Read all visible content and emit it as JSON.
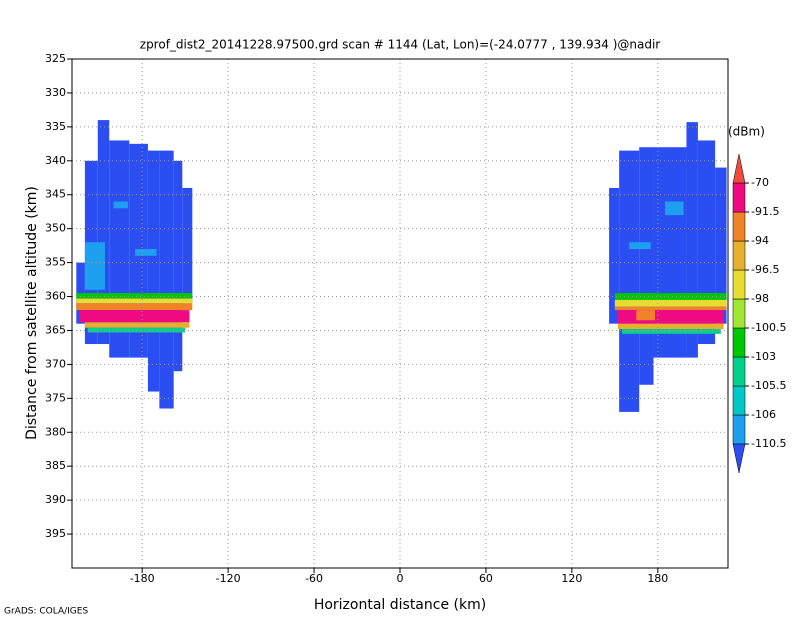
{
  "chart_data": {
    "type": "heatmap",
    "title": "zprof_dist2_20141228.97500.grd  scan # 1144  (Lat, Lon)=(-24.0777 , 139.934 )@nadir",
    "x_label": "Horizontal distance (km)",
    "y_label": "Distance from satellite altitude (km)",
    "colorbar_label": "(dBm)",
    "footer": "GrADS: COLA/IGES",
    "xlim": [
      -229,
      229
    ],
    "ylim": [
      325,
      400
    ],
    "y_inverted": true,
    "grid": true,
    "xticks": [
      -180,
      -120,
      -60,
      0,
      60,
      120,
      180
    ],
    "yticks": [
      325,
      330,
      335,
      340,
      345,
      350,
      355,
      360,
      365,
      370,
      375,
      380,
      385,
      390,
      395
    ],
    "levels": [
      -110.5,
      -106,
      -105.5,
      -103,
      -100.5,
      -98,
      -96.5,
      -94,
      -91.5,
      -70
    ],
    "colors": [
      "#2a4ef2",
      "#1ea0f0",
      "#00c8c8",
      "#00d28c",
      "#00c800",
      "#a0e632",
      "#e6dc32",
      "#e6af2d",
      "#f08228",
      "#f00a82",
      "#f04b3c"
    ],
    "cells": [
      {
        "x": [
          -226,
          -220
        ],
        "y": [
          355,
          364
        ],
        "value": -112
      },
      {
        "x": [
          -220,
          -211
        ],
        "y": [
          340,
          367
        ],
        "value": -112
      },
      {
        "x": [
          -211,
          -203
        ],
        "y": [
          334,
          367
        ],
        "value": -112
      },
      {
        "x": [
          -203,
          -189
        ],
        "y": [
          337,
          369
        ],
        "value": -112
      },
      {
        "x": [
          -189,
          -176
        ],
        "y": [
          337.5,
          369
        ],
        "value": -112
      },
      {
        "x": [
          -176,
          -168
        ],
        "y": [
          338.5,
          374
        ],
        "value": -112
      },
      {
        "x": [
          -168,
          -158
        ],
        "y": [
          338.5,
          376.5
        ],
        "value": -112
      },
      {
        "x": [
          -158,
          -152
        ],
        "y": [
          340,
          371
        ],
        "value": -112
      },
      {
        "x": [
          -152,
          -145
        ],
        "y": [
          344,
          361
        ],
        "value": -112
      },
      {
        "x": [
          -220,
          -206
        ],
        "y": [
          352,
          359
        ],
        "value": -108
      },
      {
        "x": [
          -200,
          -190
        ],
        "y": [
          346,
          347
        ],
        "value": -108
      },
      {
        "x": [
          -185,
          -170
        ],
        "y": [
          353,
          354
        ],
        "value": -108
      },
      {
        "x": [
          -226,
          -145
        ],
        "y": [
          359.5,
          360.3
        ],
        "value": -102
      },
      {
        "x": [
          -226,
          -145
        ],
        "y": [
          360.3,
          361
        ],
        "value": -97
      },
      {
        "x": [
          -226,
          -145
        ],
        "y": [
          361,
          362
        ],
        "value": -93
      },
      {
        "x": [
          -224,
          -147
        ],
        "y": [
          362,
          363.8
        ],
        "value": -85
      },
      {
        "x": [
          -220,
          -147
        ],
        "y": [
          363.8,
          364.6
        ],
        "value": -95
      },
      {
        "x": [
          -218,
          -150
        ],
        "y": [
          364.6,
          365.3
        ],
        "value": -104
      },
      {
        "x": [
          146,
          153
        ],
        "y": [
          344,
          364
        ],
        "value": -112
      },
      {
        "x": [
          153,
          167
        ],
        "y": [
          338.5,
          377
        ],
        "value": -112
      },
      {
        "x": [
          167,
          177
        ],
        "y": [
          338,
          373
        ],
        "value": -112
      },
      {
        "x": [
          177,
          200
        ],
        "y": [
          338,
          369
        ],
        "value": -112
      },
      {
        "x": [
          200,
          208
        ],
        "y": [
          334.3,
          369
        ],
        "value": -112
      },
      {
        "x": [
          208,
          220
        ],
        "y": [
          337,
          367
        ],
        "value": -112
      },
      {
        "x": [
          220,
          228
        ],
        "y": [
          341,
          364
        ],
        "value": -112
      },
      {
        "x": [
          185,
          198
        ],
        "y": [
          346,
          348
        ],
        "value": -108
      },
      {
        "x": [
          160,
          175
        ],
        "y": [
          352,
          353
        ],
        "value": -108
      },
      {
        "x": [
          150,
          228
        ],
        "y": [
          359.5,
          360.5
        ],
        "value": -102
      },
      {
        "x": [
          150,
          228
        ],
        "y": [
          360.5,
          361.5
        ],
        "value": -97
      },
      {
        "x": [
          150,
          228
        ],
        "y": [
          361.5,
          362
        ],
        "value": -93
      },
      {
        "x": [
          152,
          226
        ],
        "y": [
          362,
          364
        ],
        "value": -85
      },
      {
        "x": [
          165,
          178
        ],
        "y": [
          362,
          363.5
        ],
        "value": -93
      },
      {
        "x": [
          152,
          226
        ],
        "y": [
          364,
          364.8
        ],
        "value": -95
      },
      {
        "x": [
          155,
          224
        ],
        "y": [
          364.8,
          365.5
        ],
        "value": -104
      }
    ]
  }
}
